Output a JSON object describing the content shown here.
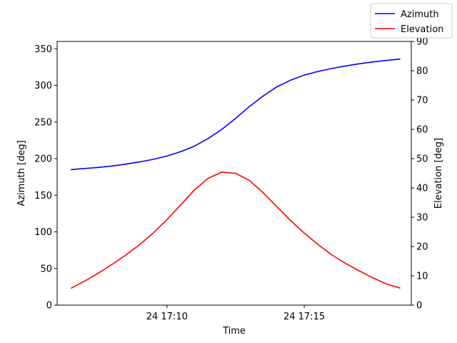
{
  "chart_data": {
    "type": "line",
    "xlabel": "Time",
    "ylabel_left": "Azimuth [deg]",
    "ylabel_right": "Elevation [deg]",
    "x_minutes": [
      6.5,
      7.0,
      7.5,
      8.0,
      8.5,
      9.0,
      9.5,
      10.0,
      10.5,
      11.0,
      11.5,
      12.0,
      12.5,
      13.0,
      13.5,
      14.0,
      14.5,
      15.0,
      15.5,
      16.0,
      16.5,
      17.0,
      17.5,
      18.0,
      18.5
    ],
    "xlim": [
      6.0,
      18.9
    ],
    "x_ticks": [
      {
        "minute": 10,
        "label": "24 17:10"
      },
      {
        "minute": 15,
        "label": "24 17:15"
      }
    ],
    "ylim_left": [
      0,
      360
    ],
    "yticks_left": [
      0,
      50,
      100,
      150,
      200,
      250,
      300,
      350
    ],
    "ylim_right": [
      0,
      90
    ],
    "yticks_right": [
      0,
      10,
      20,
      30,
      40,
      50,
      60,
      70,
      80,
      90
    ],
    "series": [
      {
        "name": "Azimuth",
        "axis": "left",
        "color": "#0000ff",
        "values": [
          185,
          186.5,
          188,
          190,
          192.5,
          195.5,
          199,
          203.5,
          209.5,
          217,
          227.5,
          240,
          255,
          271,
          285.5,
          298,
          307,
          314,
          319,
          323,
          326.5,
          329.5,
          332,
          334,
          336
        ]
      },
      {
        "name": "Elevation",
        "axis": "right",
        "color": "#ff0000",
        "values": [
          5.7,
          8.2,
          10.9,
          13.9,
          17.1,
          20.6,
          24.6,
          29.2,
          34.2,
          39.3,
          43.3,
          45.4,
          45.0,
          42.6,
          38.4,
          33.6,
          28.9,
          24.6,
          20.7,
          17.2,
          14.3,
          11.7,
          9.3,
          7.2,
          5.8
        ]
      }
    ],
    "legend": {
      "position": "top-right",
      "entries": [
        "Azimuth",
        "Elevation"
      ]
    }
  }
}
